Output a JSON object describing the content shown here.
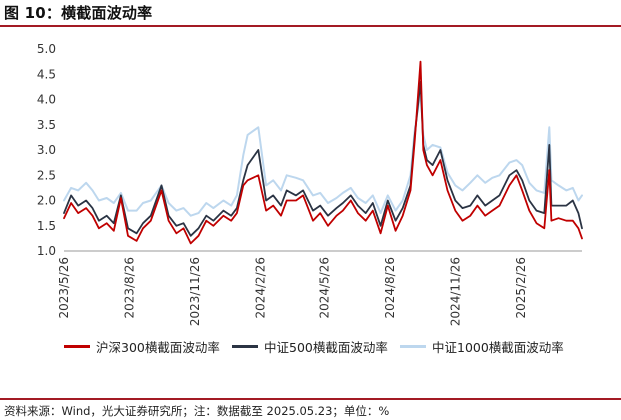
{
  "title": "图 10：横截面波动率",
  "source": "资料来源：Wind，光大证券研究所；注：数据截至 2025.05.23；单位：%",
  "chart_data": {
    "type": "line",
    "ylim": [
      1.0,
      5.0
    ],
    "yticks": [
      "1.0",
      "1.5",
      "2.0",
      "2.5",
      "3.0",
      "3.5",
      "4.0",
      "4.5",
      "5.0"
    ],
    "xticks": [
      "2023/5/26",
      "2023/8/26",
      "2023/11/26",
      "2024/2/26",
      "2024/5/26",
      "2024/8/26",
      "2024/11/26",
      "2025/2/26"
    ],
    "x_range": [
      "2023/5/26",
      "2025/5/23"
    ],
    "grid": false,
    "legend_position": "bottom",
    "series": [
      {
        "name": "沪深300横截面波动率",
        "color": "#c00000",
        "points": [
          [
            "2023/5/26",
            1.65
          ],
          [
            "2023/6/5",
            1.95
          ],
          [
            "2023/6/15",
            1.75
          ],
          [
            "2023/6/26",
            1.85
          ],
          [
            "2023/7/5",
            1.7
          ],
          [
            "2023/7/14",
            1.45
          ],
          [
            "2023/7/25",
            1.55
          ],
          [
            "2023/8/4",
            1.4
          ],
          [
            "2023/8/14",
            2.05
          ],
          [
            "2023/8/24",
            1.3
          ],
          [
            "2023/9/5",
            1.2
          ],
          [
            "2023/9/14",
            1.45
          ],
          [
            "2023/9/25",
            1.6
          ],
          [
            "2023/10/10",
            2.2
          ],
          [
            "2023/10/20",
            1.6
          ],
          [
            "2023/10/31",
            1.35
          ],
          [
            "2023/11/10",
            1.45
          ],
          [
            "2023/11/20",
            1.15
          ],
          [
            "2023/12/1",
            1.3
          ],
          [
            "2023/12/12",
            1.6
          ],
          [
            "2023/12/22",
            1.5
          ],
          [
            "2024/1/5",
            1.7
          ],
          [
            "2024/1/16",
            1.6
          ],
          [
            "2024/1/24",
            1.75
          ],
          [
            "2024/2/2",
            2.3
          ],
          [
            "2024/2/8",
            2.4
          ],
          [
            "2024/2/23",
            2.5
          ],
          [
            "2024/3/5",
            1.8
          ],
          [
            "2024/3/15",
            1.9
          ],
          [
            "2024/3/26",
            1.7
          ],
          [
            "2024/4/3",
            2.0
          ],
          [
            "2024/4/16",
            2.0
          ],
          [
            "2024/4/26",
            2.1
          ],
          [
            "2024/5/10",
            1.6
          ],
          [
            "2024/5/20",
            1.75
          ],
          [
            "2024/5/31",
            1.5
          ],
          [
            "2024/6/12",
            1.7
          ],
          [
            "2024/6/21",
            1.8
          ],
          [
            "2024/7/2",
            2.0
          ],
          [
            "2024/7/12",
            1.75
          ],
          [
            "2024/7/23",
            1.6
          ],
          [
            "2024/8/2",
            1.8
          ],
          [
            "2024/8/13",
            1.35
          ],
          [
            "2024/8/23",
            1.9
          ],
          [
            "2024/9/3",
            1.4
          ],
          [
            "2024/9/13",
            1.7
          ],
          [
            "2024/9/24",
            2.2
          ],
          [
            "2024/9/30",
            3.2
          ],
          [
            "2024/10/8",
            4.75
          ],
          [
            "2024/10/12",
            3.0
          ],
          [
            "2024/10/17",
            2.7
          ],
          [
            "2024/10/25",
            2.5
          ],
          [
            "2024/11/5",
            2.8
          ],
          [
            "2024/11/15",
            2.2
          ],
          [
            "2024/11/26",
            1.8
          ],
          [
            "2024/12/6",
            1.6
          ],
          [
            "2024/12/17",
            1.7
          ],
          [
            "2024/12/27",
            1.9
          ],
          [
            "2025/1/7",
            1.7
          ],
          [
            "2025/1/17",
            1.8
          ],
          [
            "2025/1/27",
            1.9
          ],
          [
            "2025/2/10",
            2.3
          ],
          [
            "2025/2/20",
            2.5
          ],
          [
            "2025/2/28",
            2.2
          ],
          [
            "2025/3/10",
            1.8
          ],
          [
            "2025/3/20",
            1.55
          ],
          [
            "2025/3/31",
            1.45
          ],
          [
            "2025/4/7",
            2.6
          ],
          [
            "2025/4/10",
            1.6
          ],
          [
            "2025/4/20",
            1.65
          ],
          [
            "2025/5/1",
            1.6
          ],
          [
            "2025/5/10",
            1.6
          ],
          [
            "2025/5/18",
            1.45
          ],
          [
            "2025/5/23",
            1.25
          ]
        ]
      },
      {
        "name": "中证500横截面波动率",
        "color": "#2b3444",
        "points": [
          [
            "2023/5/26",
            1.75
          ],
          [
            "2023/6/5",
            2.1
          ],
          [
            "2023/6/15",
            1.9
          ],
          [
            "2023/6/26",
            2.0
          ],
          [
            "2023/7/5",
            1.85
          ],
          [
            "2023/7/14",
            1.6
          ],
          [
            "2023/7/25",
            1.7
          ],
          [
            "2023/8/4",
            1.55
          ],
          [
            "2023/8/14",
            2.1
          ],
          [
            "2023/8/24",
            1.45
          ],
          [
            "2023/9/5",
            1.35
          ],
          [
            "2023/9/14",
            1.55
          ],
          [
            "2023/9/25",
            1.7
          ],
          [
            "2023/10/10",
            2.3
          ],
          [
            "2023/10/20",
            1.7
          ],
          [
            "2023/10/31",
            1.5
          ],
          [
            "2023/11/10",
            1.55
          ],
          [
            "2023/11/20",
            1.3
          ],
          [
            "2023/12/1",
            1.45
          ],
          [
            "2023/12/12",
            1.7
          ],
          [
            "2023/12/22",
            1.6
          ],
          [
            "2024/1/5",
            1.8
          ],
          [
            "2024/1/16",
            1.7
          ],
          [
            "2024/1/24",
            1.85
          ],
          [
            "2024/2/2",
            2.4
          ],
          [
            "2024/2/8",
            2.7
          ],
          [
            "2024/2/23",
            3.0
          ],
          [
            "2024/3/5",
            2.0
          ],
          [
            "2024/3/15",
            2.1
          ],
          [
            "2024/3/26",
            1.9
          ],
          [
            "2024/4/3",
            2.2
          ],
          [
            "2024/4/16",
            2.1
          ],
          [
            "2024/4/26",
            2.2
          ],
          [
            "2024/5/10",
            1.8
          ],
          [
            "2024/5/20",
            1.9
          ],
          [
            "2024/5/31",
            1.7
          ],
          [
            "2024/6/12",
            1.85
          ],
          [
            "2024/6/21",
            1.95
          ],
          [
            "2024/7/2",
            2.1
          ],
          [
            "2024/7/12",
            1.9
          ],
          [
            "2024/7/23",
            1.75
          ],
          [
            "2024/8/2",
            1.95
          ],
          [
            "2024/8/13",
            1.5
          ],
          [
            "2024/8/23",
            2.0
          ],
          [
            "2024/9/3",
            1.6
          ],
          [
            "2024/9/13",
            1.85
          ],
          [
            "2024/9/24",
            2.3
          ],
          [
            "2024/9/30",
            3.3
          ],
          [
            "2024/10/8",
            4.35
          ],
          [
            "2024/10/12",
            3.1
          ],
          [
            "2024/10/17",
            2.8
          ],
          [
            "2024/10/25",
            2.7
          ],
          [
            "2024/11/5",
            3.0
          ],
          [
            "2024/11/15",
            2.4
          ],
          [
            "2024/11/26",
            2.0
          ],
          [
            "2024/12/6",
            1.85
          ],
          [
            "2024/12/17",
            1.9
          ],
          [
            "2024/12/27",
            2.1
          ],
          [
            "2025/1/7",
            1.9
          ],
          [
            "2025/1/17",
            2.0
          ],
          [
            "2025/1/27",
            2.1
          ],
          [
            "2025/2/10",
            2.5
          ],
          [
            "2025/2/20",
            2.6
          ],
          [
            "2025/2/28",
            2.4
          ],
          [
            "2025/3/10",
            2.0
          ],
          [
            "2025/3/20",
            1.8
          ],
          [
            "2025/3/31",
            1.75
          ],
          [
            "2025/4/7",
            3.1
          ],
          [
            "2025/4/10",
            1.9
          ],
          [
            "2025/4/20",
            1.9
          ],
          [
            "2025/5/1",
            1.9
          ],
          [
            "2025/5/10",
            2.0
          ],
          [
            "2025/5/18",
            1.75
          ],
          [
            "2025/5/23",
            1.45
          ]
        ]
      },
      {
        "name": "中证1000横截面波动率",
        "color": "#bdd7ee",
        "points": [
          [
            "2023/5/26",
            2.0
          ],
          [
            "2023/6/5",
            2.25
          ],
          [
            "2023/6/15",
            2.2
          ],
          [
            "2023/6/26",
            2.35
          ],
          [
            "2023/7/5",
            2.2
          ],
          [
            "2023/7/14",
            2.0
          ],
          [
            "2023/7/25",
            2.05
          ],
          [
            "2023/8/4",
            1.95
          ],
          [
            "2023/8/14",
            2.15
          ],
          [
            "2023/8/24",
            1.8
          ],
          [
            "2023/9/5",
            1.8
          ],
          [
            "2023/9/14",
            1.95
          ],
          [
            "2023/9/25",
            2.0
          ],
          [
            "2023/10/10",
            2.3
          ],
          [
            "2023/10/20",
            1.95
          ],
          [
            "2023/10/31",
            1.8
          ],
          [
            "2023/11/10",
            1.85
          ],
          [
            "2023/11/20",
            1.7
          ],
          [
            "2023/12/1",
            1.75
          ],
          [
            "2023/12/12",
            1.95
          ],
          [
            "2023/12/22",
            1.85
          ],
          [
            "2024/1/5",
            2.0
          ],
          [
            "2024/1/16",
            1.9
          ],
          [
            "2024/1/24",
            2.1
          ],
          [
            "2024/2/2",
            2.9
          ],
          [
            "2024/2/8",
            3.3
          ],
          [
            "2024/2/23",
            3.45
          ],
          [
            "2024/3/5",
            2.3
          ],
          [
            "2024/3/15",
            2.4
          ],
          [
            "2024/3/26",
            2.2
          ],
          [
            "2024/4/3",
            2.5
          ],
          [
            "2024/4/16",
            2.45
          ],
          [
            "2024/4/26",
            2.4
          ],
          [
            "2024/5/10",
            2.1
          ],
          [
            "2024/5/20",
            2.15
          ],
          [
            "2024/5/31",
            1.95
          ],
          [
            "2024/6/12",
            2.05
          ],
          [
            "2024/6/21",
            2.15
          ],
          [
            "2024/7/2",
            2.25
          ],
          [
            "2024/7/12",
            2.05
          ],
          [
            "2024/7/23",
            1.95
          ],
          [
            "2024/8/2",
            2.1
          ],
          [
            "2024/8/13",
            1.75
          ],
          [
            "2024/8/23",
            2.1
          ],
          [
            "2024/9/3",
            1.8
          ],
          [
            "2024/9/13",
            2.0
          ],
          [
            "2024/9/24",
            2.5
          ],
          [
            "2024/9/30",
            3.4
          ],
          [
            "2024/10/8",
            4.15
          ],
          [
            "2024/10/12",
            3.3
          ],
          [
            "2024/10/17",
            3.0
          ],
          [
            "2024/10/25",
            3.1
          ],
          [
            "2024/11/5",
            3.05
          ],
          [
            "2024/11/15",
            2.55
          ],
          [
            "2024/11/26",
            2.3
          ],
          [
            "2024/12/6",
            2.2
          ],
          [
            "2024/12/17",
            2.35
          ],
          [
            "2024/12/27",
            2.5
          ],
          [
            "2025/1/7",
            2.35
          ],
          [
            "2025/1/17",
            2.45
          ],
          [
            "2025/1/27",
            2.5
          ],
          [
            "2025/2/10",
            2.75
          ],
          [
            "2025/2/20",
            2.8
          ],
          [
            "2025/2/28",
            2.7
          ],
          [
            "2025/3/10",
            2.35
          ],
          [
            "2025/3/20",
            2.2
          ],
          [
            "2025/3/31",
            2.15
          ],
          [
            "2025/4/7",
            3.45
          ],
          [
            "2025/4/10",
            2.4
          ],
          [
            "2025/4/20",
            2.3
          ],
          [
            "2025/5/1",
            2.2
          ],
          [
            "2025/5/10",
            2.25
          ],
          [
            "2025/5/18",
            2.0
          ],
          [
            "2025/5/23",
            2.1
          ]
        ]
      }
    ]
  }
}
